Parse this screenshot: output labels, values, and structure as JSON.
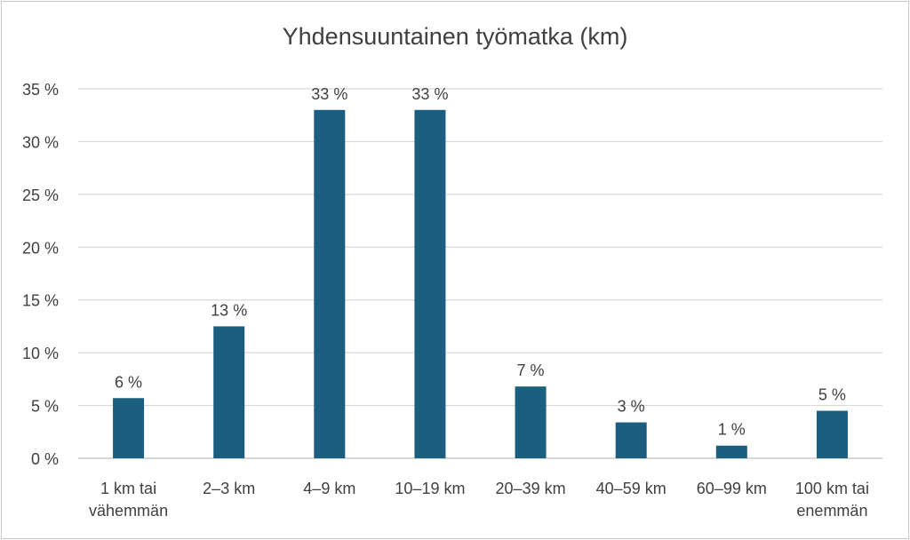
{
  "chart_data": {
    "type": "bar",
    "title": "Yhdensuuntainen työmatka (km)",
    "categories": [
      [
        "1 km tai",
        "vähemmän"
      ],
      [
        "2–3 km"
      ],
      [
        "4–9 km"
      ],
      [
        "10–19 km"
      ],
      [
        "20–39 km"
      ],
      [
        "40–59 km"
      ],
      [
        "60–99 km"
      ],
      [
        "100 km tai",
        "enemmän"
      ]
    ],
    "values": [
      5.7,
      12.5,
      33,
      33,
      6.8,
      3.4,
      1.2,
      4.5
    ],
    "data_labels": [
      "6 %",
      "13 %",
      "33 %",
      "33 %",
      "7 %",
      "3 %",
      "1 %",
      "5 %"
    ],
    "y_ticks": [
      0,
      5,
      10,
      15,
      20,
      25,
      30,
      35
    ],
    "y_tick_suffix": " %",
    "ylim": [
      0,
      35
    ],
    "xlabel": "",
    "ylabel": "",
    "grid": true,
    "legend": "none",
    "colors": {
      "bar": "#1b5e80",
      "grid": "#d9d9d9",
      "text": "#404040"
    }
  }
}
